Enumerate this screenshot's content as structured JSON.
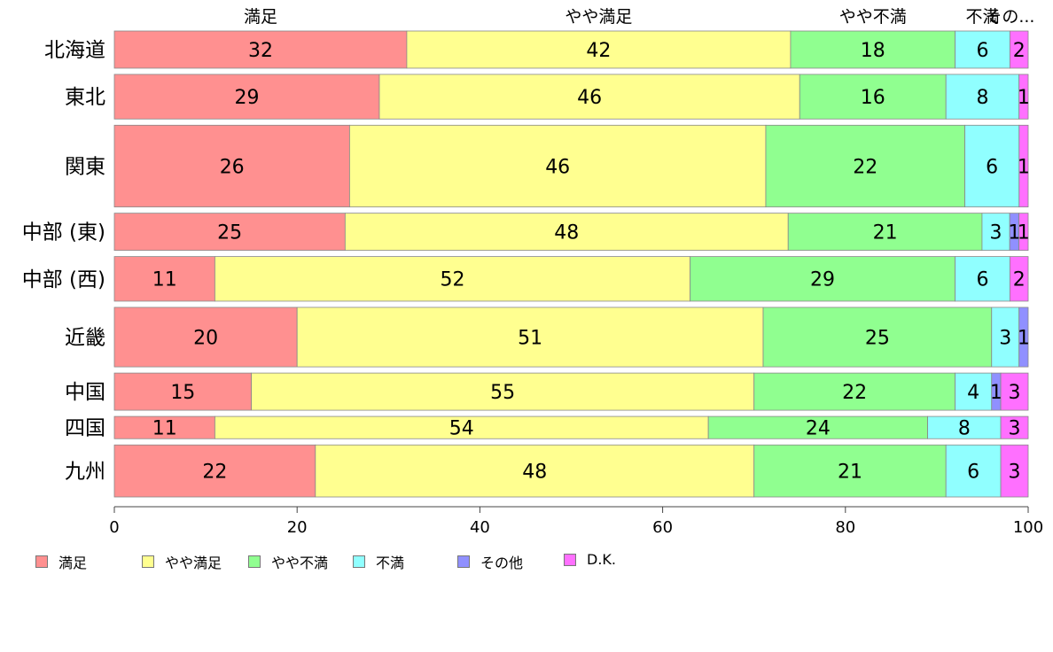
{
  "chart_data": {
    "type": "bar",
    "orientation": "horizontal",
    "stacked": "percent",
    "categories": [
      "北海道",
      "東北",
      "関東",
      "中部 (東)",
      "中部 (西)",
      "近畿",
      "中国",
      "四国",
      "九州"
    ],
    "series": [
      {
        "name": "満足",
        "color": "#ff9090",
        "values": [
          32,
          29,
          26,
          25,
          11,
          20,
          15,
          11,
          22
        ]
      },
      {
        "name": "やや満足",
        "color": "#ffff90",
        "values": [
          42,
          46,
          46,
          48,
          52,
          51,
          55,
          54,
          48
        ]
      },
      {
        "name": "やや不満",
        "color": "#90ff90",
        "values": [
          18,
          16,
          22,
          21,
          29,
          25,
          22,
          24,
          21
        ]
      },
      {
        "name": "不満",
        "color": "#90ffff",
        "values": [
          6,
          8,
          6,
          3,
          6,
          3,
          4,
          8,
          6
        ]
      },
      {
        "name": "その他",
        "color": "#9090ff",
        "values": [
          0,
          0,
          0,
          1,
          0,
          1,
          1,
          0,
          0
        ]
      },
      {
        "name": "D.K.",
        "color": "#ff70ff",
        "values": [
          2,
          1,
          1,
          1,
          2,
          0,
          3,
          3,
          3
        ]
      }
    ],
    "relative_bar_widths": [
      5,
      6,
      11,
      5,
      6,
      8,
      5,
      3,
      7
    ],
    "top_labels": [
      "満足",
      "やや満足",
      "やや不満",
      "不満",
      "その..."
    ],
    "xlim": [
      0,
      100
    ],
    "xticks": [
      0,
      20,
      40,
      60,
      80,
      100
    ],
    "grid": false,
    "legend_position": "bottom",
    "data_labels": true
  }
}
